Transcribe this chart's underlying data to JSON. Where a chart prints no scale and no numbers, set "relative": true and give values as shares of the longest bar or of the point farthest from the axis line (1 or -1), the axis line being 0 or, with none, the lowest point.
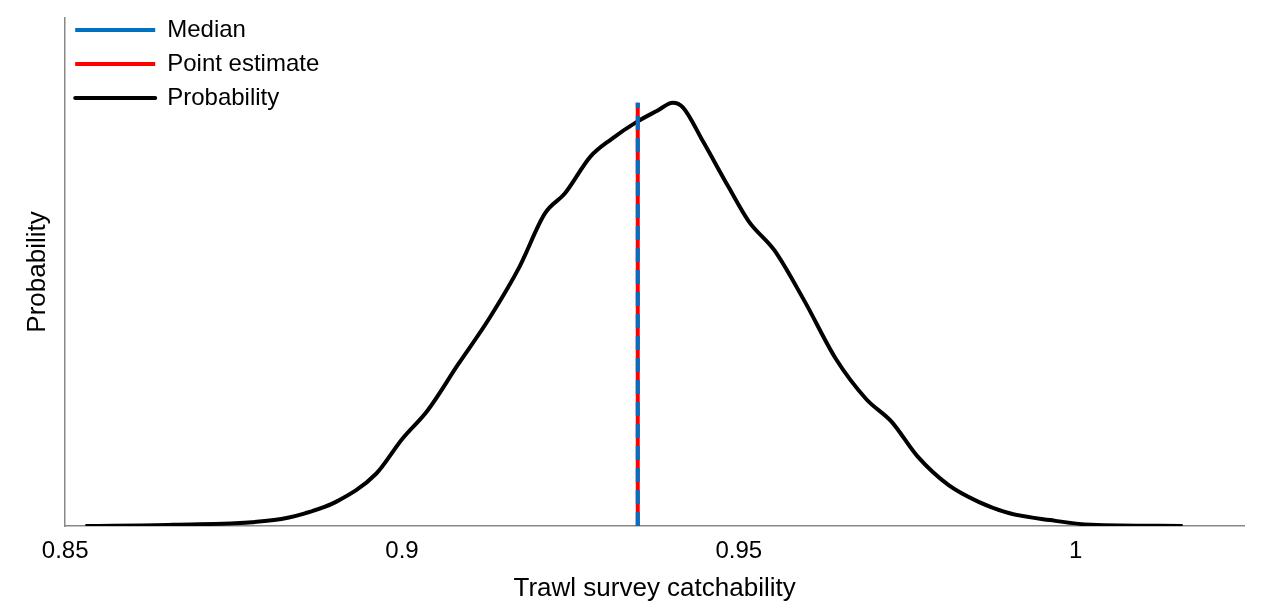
{
  "chart_data": {
    "type": "line",
    "xlabel": "Trawl survey catchability",
    "ylabel": "Probability",
    "relative": true,
    "xlim": [
      0.85,
      1.025
    ],
    "xticks": [
      0.85,
      0.9,
      0.95,
      1
    ],
    "series": [
      {
        "name": "Probability",
        "color": "#000000",
        "x": [
          0.853,
          0.866,
          0.881,
          0.8856,
          0.8902,
          0.8962,
          0.9,
          0.9038,
          0.9083,
          0.9129,
          0.9174,
          0.9212,
          0.9242,
          0.928,
          0.9311,
          0.9348,
          0.9379,
          0.9402,
          0.9417,
          0.9447,
          0.9485,
          0.9515,
          0.9553,
          0.9598,
          0.9644,
          0.9689,
          0.9727,
          0.9765,
          0.9811,
          0.9856,
          0.9902,
          0.9962,
          1.0023,
          1.0159
        ],
        "values": [
          0,
          0.003,
          0.014,
          0.03,
          0.057,
          0.124,
          0.205,
          0.273,
          0.381,
          0.489,
          0.611,
          0.738,
          0.786,
          0.873,
          0.914,
          0.954,
          0.981,
          1,
          0.989,
          0.908,
          0.8,
          0.719,
          0.651,
          0.53,
          0.395,
          0.3,
          0.246,
          0.165,
          0.097,
          0.057,
          0.03,
          0.014,
          0.003,
          0
        ]
      }
    ],
    "ref_lines": [
      {
        "axis": "x",
        "value": 0.935,
        "label": "Point estimate",
        "color": "#ff0000",
        "line_style": "solid"
      },
      {
        "axis": "x",
        "value": 0.935,
        "label": "Median",
        "color": "#0070c0",
        "line_style": "dashed"
      }
    ],
    "legend": "top left",
    "grid": false
  }
}
